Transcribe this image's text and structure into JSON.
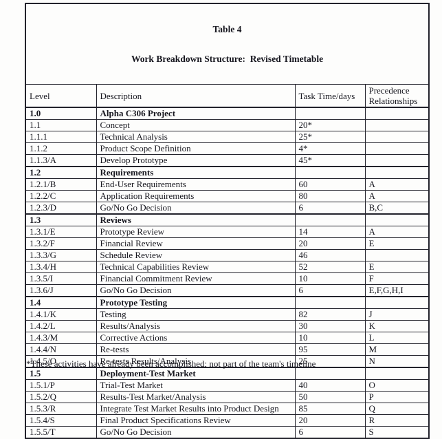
{
  "title": {
    "line1": "Table 4",
    "line2": "Work Breakdown Structure:  Revised Timetable"
  },
  "columns": [
    "Level",
    "Description",
    "Task Time/days",
    "Precedence Relationships"
  ],
  "table": {
    "rows": [
      {
        "level": "1.0",
        "description": "Alpha C306 Project",
        "time": "",
        "precedence": "",
        "section": true
      },
      {
        "level": "1.1",
        "description": "Concept",
        "time": "20*",
        "precedence": "",
        "section": false
      },
      {
        "level": "1.1.1",
        "description": "Technical Analysis",
        "time": "25*",
        "precedence": "",
        "section": false
      },
      {
        "level": "1.1.2",
        "description": "Product Scope Definition",
        "time": "4*",
        "precedence": "",
        "section": false
      },
      {
        "level": "1.1.3/A",
        "description": "Develop Prototype",
        "time": "45*",
        "precedence": "",
        "section": false
      },
      {
        "level": "1.2",
        "description": "Requirements",
        "time": "",
        "precedence": "",
        "section": true
      },
      {
        "level": "1.2.1/B",
        "description": "End-User Requirements",
        "time": "60",
        "precedence": "A",
        "section": false
      },
      {
        "level": "1.2.2/C",
        "description": "Application Requirements",
        "time": "80",
        "precedence": "A",
        "section": false
      },
      {
        "level": "1.2.3/D",
        "description": "Go/No Go Decision",
        "time": "6",
        "precedence": "B,C",
        "section": false
      },
      {
        "level": "1.3",
        "description": "Reviews",
        "time": "",
        "precedence": "",
        "section": true
      },
      {
        "level": "1.3.1/E",
        "description": "Prototype Review",
        "time": "14",
        "precedence": "A",
        "section": false
      },
      {
        "level": "1.3.2/F",
        "description": "Financial Review",
        "time": "20",
        "precedence": "E",
        "section": false
      },
      {
        "level": "1.3.3/G",
        "description": "Schedule Review",
        "time": "46",
        "precedence": "",
        "section": false
      },
      {
        "level": "1.3.4/H",
        "description": "Technical Capabilities Review",
        "time": "52",
        "precedence": "E",
        "section": false
      },
      {
        "level": "1.3.5/I",
        "description": "Financial Commitment Review",
        "time": "10",
        "precedence": "F",
        "section": false
      },
      {
        "level": "1.3.6/J",
        "description": "Go/No Go Decision",
        "time": "6",
        "precedence": "E,F,G,H,I",
        "section": false
      },
      {
        "level": "1.4",
        "description": "Prototype Testing",
        "time": "",
        "precedence": "",
        "section": true
      },
      {
        "level": "1.4.1/K",
        "description": "Testing",
        "time": "82",
        "precedence": "J",
        "section": false
      },
      {
        "level": "1.4.2/L",
        "description": "Results/Analysis",
        "time": "30",
        "precedence": "K",
        "section": false
      },
      {
        "level": "1.4.3/M",
        "description": "Corrective Actions",
        "time": "10",
        "precedence": "L",
        "section": false
      },
      {
        "level": "1.4.4/N",
        "description": "Re-tests",
        "time": "95",
        "precedence": "M",
        "section": false
      },
      {
        "level": "1.4.5/O",
        "description": "Re-tests Results/Analysis",
        "time": "25",
        "precedence": "N",
        "section": false
      },
      {
        "level": "1.5",
        "description": "Deployment-Test Market",
        "time": "",
        "precedence": "",
        "section": true
      },
      {
        "level": "1.5.1/P",
        "description": "Trial-Test Market",
        "time": "40",
        "precedence": "O",
        "section": false
      },
      {
        "level": "1.5.2/Q",
        "description": "Results-Test Market/Analysis",
        "time": "50",
        "precedence": "P",
        "section": false
      },
      {
        "level": "1.5.3/R",
        "description": "Integrate Test Market Results into Product Design",
        "time": "85",
        "precedence": "Q",
        "section": false
      },
      {
        "level": "1.5.4/S",
        "description": "Final Product Specifications Review",
        "time": "20",
        "precedence": "R",
        "section": false
      },
      {
        "level": "1.5.5/T",
        "description": "Go/No Go Decision",
        "time": "6",
        "precedence": "S",
        "section": false
      }
    ]
  },
  "footnote": "*These activities have already been accomplished; not part of the team's timeline"
}
